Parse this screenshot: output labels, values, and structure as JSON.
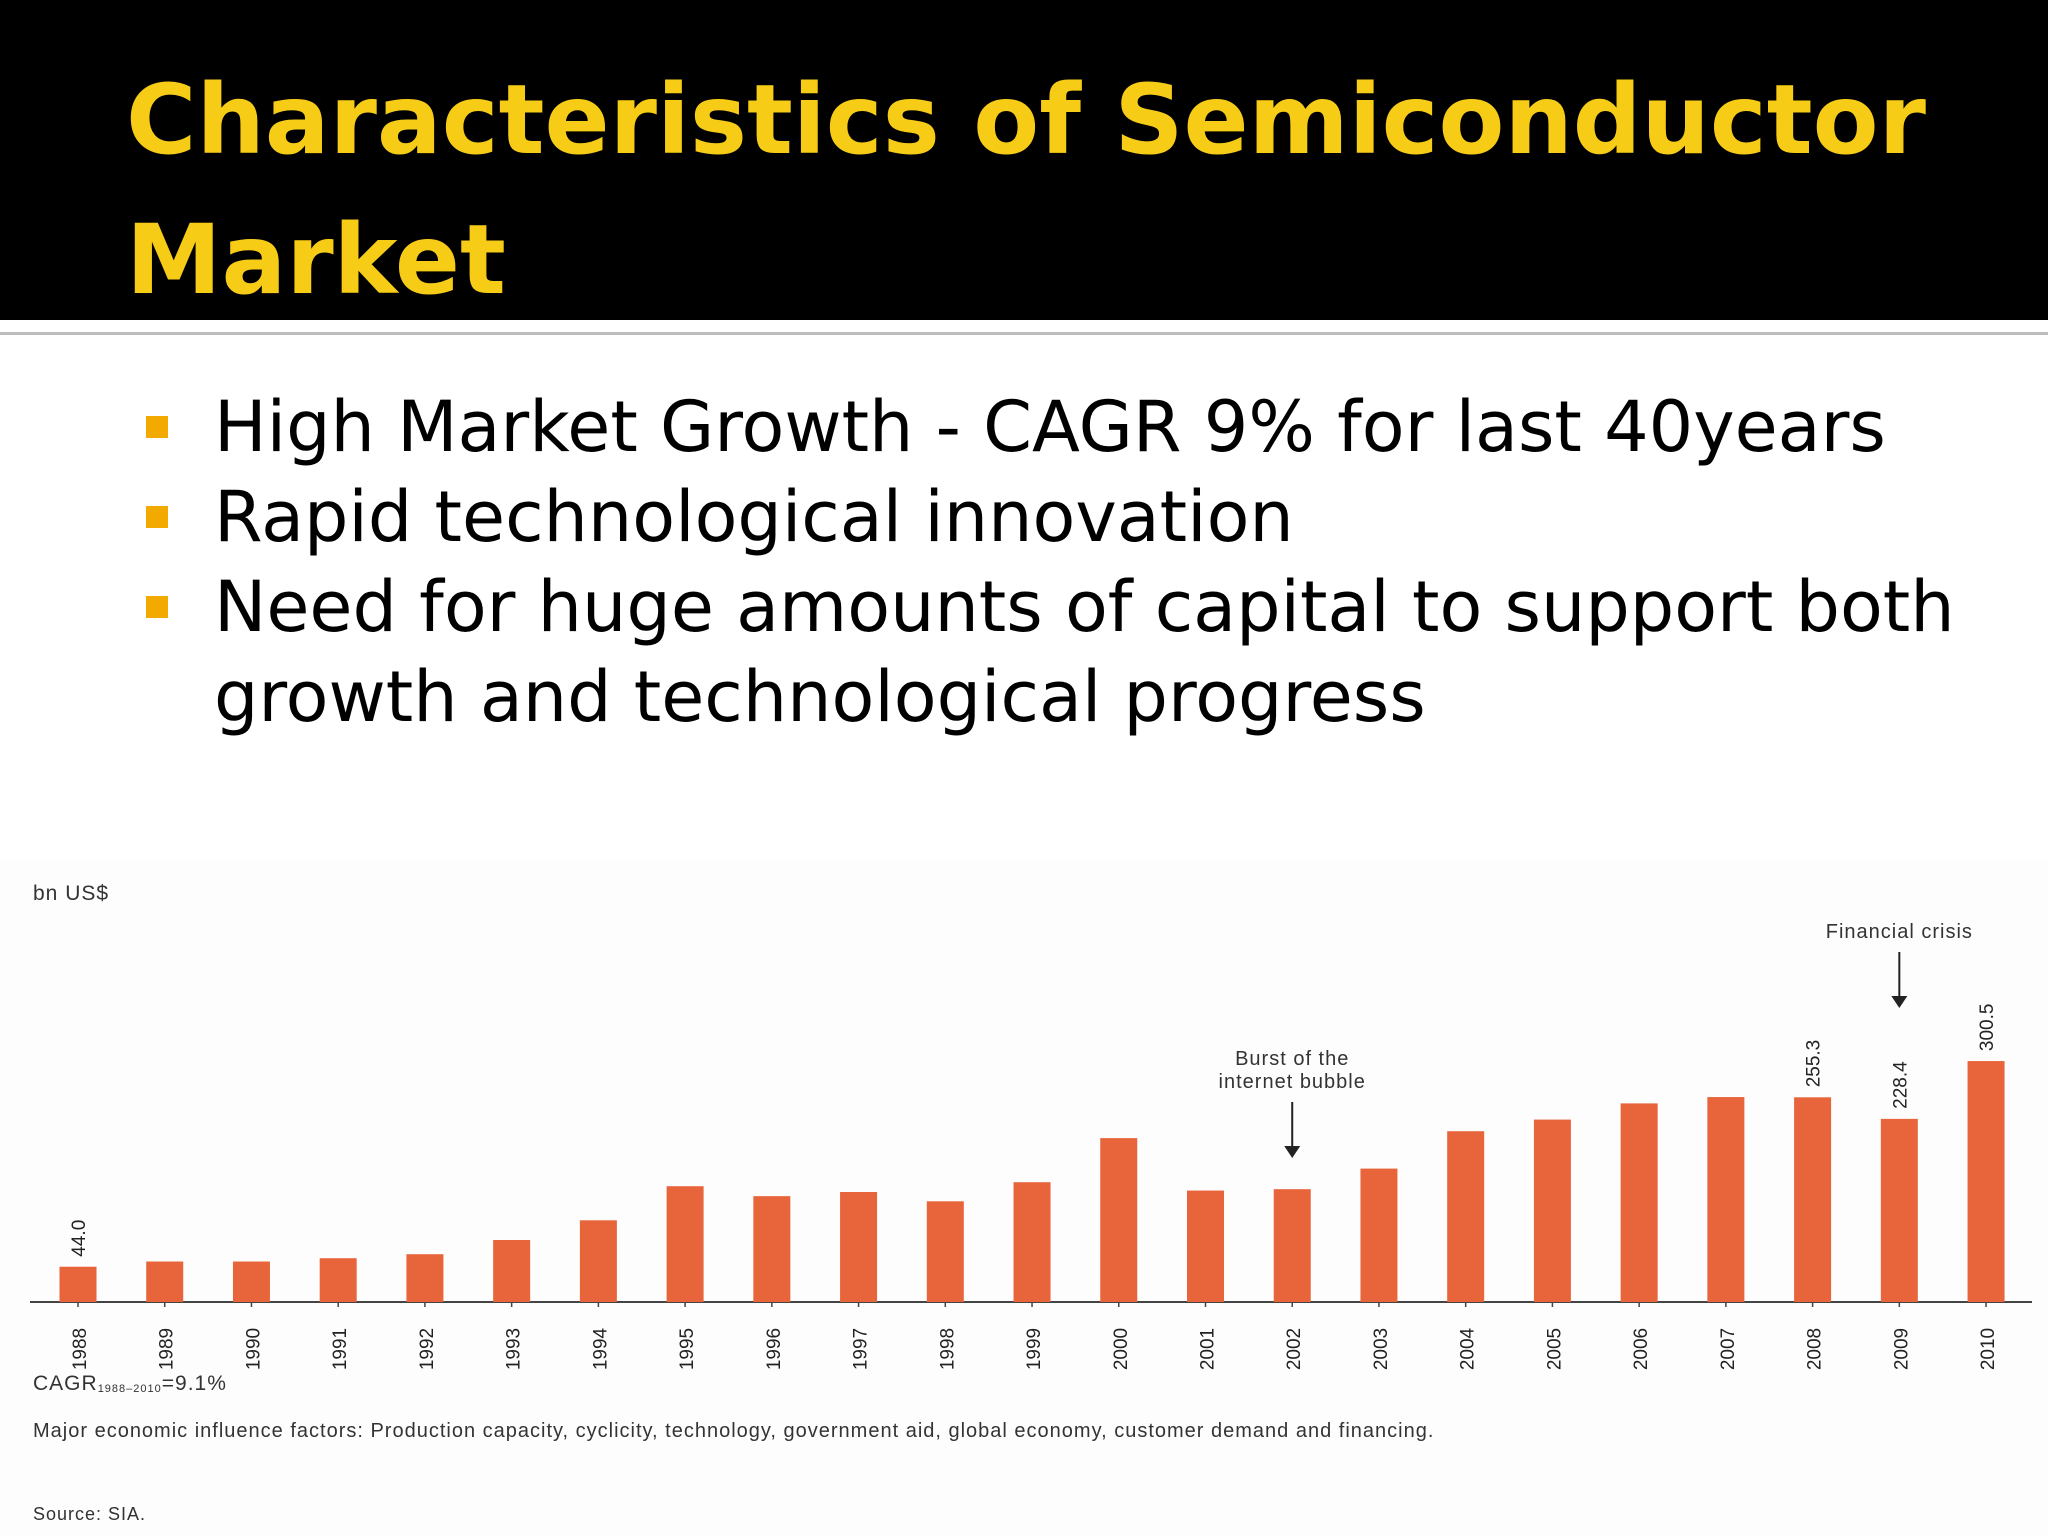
{
  "slide": {
    "title": "Characteristics of Semiconductor Market",
    "bullets": [
      "High Market Growth - CAGR 9% for last 40years",
      "Rapid technological innovation",
      "Need for huge amounts of capital to support both growth and technological progress"
    ]
  },
  "colors": {
    "title_text": "#f7cc16",
    "title_band": "#000000",
    "bullet_marker": "#f2a900",
    "bar": "#e8643a"
  },
  "chart_data": {
    "type": "bar",
    "ylabel": "bn US$",
    "categories": [
      "1988",
      "1989",
      "1990",
      "1991",
      "1992",
      "1993",
      "1994",
      "1995",
      "1996",
      "1997",
      "1998",
      "1999",
      "2000",
      "2001",
      "2002",
      "2003",
      "2004",
      "2005",
      "2006",
      "2007",
      "2008",
      "2009",
      "2010"
    ],
    "values": [
      44.0,
      50.5,
      50.5,
      54.6,
      59.6,
      77.3,
      101.9,
      144.4,
      132.0,
      137.2,
      125.6,
      149.4,
      204.4,
      139.0,
      140.7,
      166.4,
      213.0,
      227.5,
      247.7,
      255.6,
      255.3,
      228.4,
      300.5
    ],
    "data_labels": {
      "0": "44.0",
      "20": "255.3",
      "21": "228.4",
      "22": "300.5"
    },
    "annotations": [
      {
        "text_lines": [
          "Burst of the",
          "internet bubble"
        ],
        "category": "2002"
      },
      {
        "text_lines": [
          "Financial crisis"
        ],
        "category": "2009"
      }
    ],
    "grid": false,
    "legend": "none",
    "cagr": {
      "label": "CAGR",
      "period": "1988–2010",
      "value": "=9.1%"
    },
    "note": "Major economic influence factors: Production capacity, cyclicity, technology, government aid, global economy, customer demand and financing.",
    "source": "Source: SIA."
  }
}
